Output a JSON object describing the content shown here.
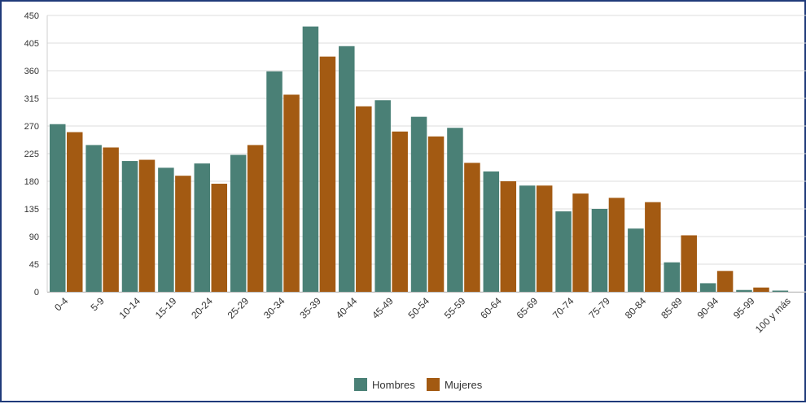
{
  "chart_data": {
    "type": "bar",
    "title": "",
    "xlabel": "",
    "ylabel": "",
    "categories": [
      "0-4",
      "5-9",
      "10-14",
      "15-19",
      "20-24",
      "25-29",
      "30-34",
      "35-39",
      "40-44",
      "45-49",
      "50-54",
      "55-59",
      "60-64",
      "65-69",
      "70-74",
      "75-79",
      "80-84",
      "85-89",
      "90-94",
      "95-99",
      "100 y más"
    ],
    "series": [
      {
        "name": "Hombres",
        "color": "#4a8076",
        "values": [
          273,
          239,
          213,
          202,
          209,
          223,
          359,
          432,
          400,
          312,
          285,
          267,
          196,
          173,
          131,
          135,
          103,
          48,
          14,
          3,
          2
        ]
      },
      {
        "name": "Mujeres",
        "color": "#a35a12",
        "values": [
          260,
          235,
          215,
          189,
          176,
          239,
          321,
          383,
          302,
          261,
          253,
          210,
          180,
          173,
          160,
          153,
          146,
          92,
          34,
          7,
          0
        ]
      }
    ],
    "ylim": [
      0,
      450
    ],
    "yticks": [
      0,
      45,
      90,
      135,
      180,
      225,
      270,
      315,
      360,
      405,
      450
    ],
    "grid": true,
    "legend_position": "bottom-center"
  }
}
